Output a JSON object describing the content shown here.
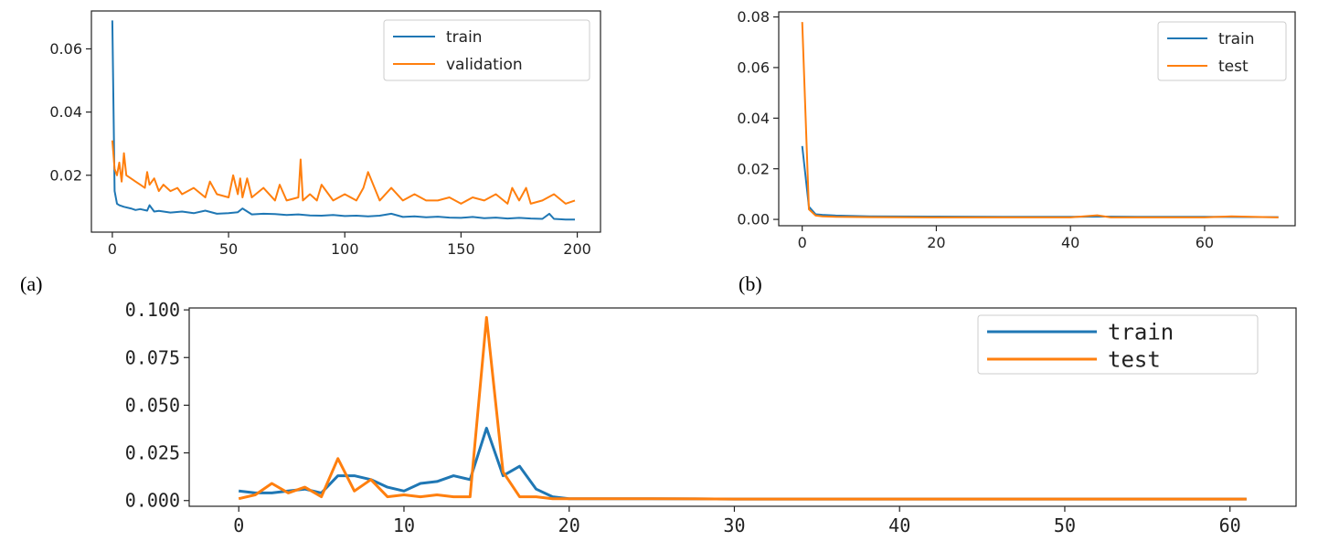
{
  "colors": {
    "train": "#1f77b4",
    "orange": "#ff7f0e",
    "axis": "#222222"
  },
  "chart_data": [
    {
      "panel": "a",
      "caption": "(a)",
      "type": "line",
      "xlim": [
        -9,
        210
      ],
      "ylim": [
        0.002,
        0.072
      ],
      "xticks": [
        0,
        50,
        100,
        150,
        200
      ],
      "yticks": [
        0.02,
        0.04,
        0.06
      ],
      "xticklabels": [
        "0",
        "50",
        "100",
        "150",
        "200"
      ],
      "yticklabels": [
        "0.02",
        "0.04",
        "0.06"
      ],
      "legend_position": "top-right",
      "series": [
        {
          "name": "train",
          "color": "#1f77b4",
          "x": [
            0,
            1,
            2,
            3,
            5,
            8,
            10,
            12,
            15,
            16,
            18,
            20,
            25,
            30,
            35,
            40,
            45,
            50,
            54,
            56,
            60,
            65,
            70,
            75,
            80,
            85,
            90,
            95,
            100,
            105,
            110,
            115,
            120,
            125,
            130,
            135,
            140,
            145,
            150,
            155,
            160,
            165,
            170,
            175,
            180,
            185,
            188,
            190,
            195,
            199
          ],
          "y": [
            0.069,
            0.015,
            0.011,
            0.0105,
            0.01,
            0.0095,
            0.009,
            0.0093,
            0.0088,
            0.0105,
            0.0085,
            0.0087,
            0.0082,
            0.0085,
            0.008,
            0.0088,
            0.0078,
            0.008,
            0.0083,
            0.0095,
            0.0076,
            0.0078,
            0.0077,
            0.0074,
            0.0076,
            0.0073,
            0.0072,
            0.0074,
            0.0071,
            0.0072,
            0.007,
            0.0072,
            0.0078,
            0.0068,
            0.007,
            0.0067,
            0.0069,
            0.0066,
            0.0065,
            0.0068,
            0.0064,
            0.0066,
            0.0063,
            0.0065,
            0.0063,
            0.0062,
            0.0078,
            0.0062,
            0.006,
            0.006
          ]
        },
        {
          "name": "validation",
          "color": "#ff7f0e",
          "x": [
            0,
            1,
            2,
            3,
            4,
            5,
            6,
            8,
            10,
            12,
            14,
            15,
            16,
            18,
            20,
            22,
            25,
            28,
            30,
            35,
            40,
            42,
            45,
            50,
            52,
            54,
            55,
            56,
            58,
            60,
            65,
            70,
            72,
            75,
            80,
            81,
            82,
            85,
            88,
            90,
            95,
            100,
            105,
            108,
            110,
            115,
            120,
            125,
            130,
            135,
            140,
            145,
            150,
            155,
            160,
            165,
            170,
            172,
            175,
            178,
            180,
            185,
            190,
            195,
            199
          ],
          "y": [
            0.031,
            0.022,
            0.02,
            0.024,
            0.018,
            0.027,
            0.02,
            0.019,
            0.018,
            0.017,
            0.016,
            0.021,
            0.017,
            0.019,
            0.015,
            0.017,
            0.015,
            0.016,
            0.014,
            0.016,
            0.013,
            0.018,
            0.014,
            0.013,
            0.02,
            0.014,
            0.019,
            0.013,
            0.019,
            0.013,
            0.016,
            0.012,
            0.017,
            0.012,
            0.013,
            0.025,
            0.012,
            0.014,
            0.012,
            0.017,
            0.012,
            0.014,
            0.012,
            0.016,
            0.021,
            0.012,
            0.016,
            0.012,
            0.014,
            0.012,
            0.012,
            0.013,
            0.011,
            0.013,
            0.012,
            0.014,
            0.011,
            0.016,
            0.012,
            0.016,
            0.011,
            0.012,
            0.014,
            0.011,
            0.012
          ]
        }
      ]
    },
    {
      "panel": "b",
      "caption": "(b)",
      "type": "line",
      "xlim": [
        -3.5,
        73.5
      ],
      "ylim": [
        -0.0025,
        0.082
      ],
      "xticks": [
        0,
        20,
        40,
        60
      ],
      "yticks": [
        0.0,
        0.02,
        0.04,
        0.06,
        0.08
      ],
      "xticklabels": [
        "0",
        "20",
        "40",
        "60"
      ],
      "yticklabels": [
        "0.00",
        "0.02",
        "0.04",
        "0.06",
        "0.08"
      ],
      "legend_position": "top-right",
      "series": [
        {
          "name": "train",
          "color": "#1f77b4",
          "x": [
            0,
            1,
            2,
            3,
            5,
            10,
            20,
            30,
            40,
            45,
            50,
            60,
            71
          ],
          "y": [
            0.029,
            0.005,
            0.002,
            0.0018,
            0.0015,
            0.0012,
            0.0011,
            0.001,
            0.001,
            0.0011,
            0.001,
            0.001,
            0.0009
          ]
        },
        {
          "name": "test",
          "color": "#ff7f0e",
          "x": [
            0,
            1,
            2,
            3,
            5,
            10,
            20,
            30,
            40,
            44,
            46,
            50,
            60,
            64,
            71
          ],
          "y": [
            0.078,
            0.004,
            0.0015,
            0.0012,
            0.001,
            0.0009,
            0.0008,
            0.0008,
            0.0008,
            0.0016,
            0.0008,
            0.0008,
            0.0008,
            0.0012,
            0.0008
          ]
        }
      ]
    },
    {
      "panel": "c",
      "caption": "",
      "type": "line",
      "xlim": [
        -3,
        64
      ],
      "ylim": [
        -0.003,
        0.101
      ],
      "xticks": [
        0,
        10,
        20,
        30,
        40,
        50,
        60
      ],
      "yticks": [
        0.0,
        0.025,
        0.05,
        0.075,
        0.1
      ],
      "xticklabels": [
        "0",
        "10",
        "20",
        "30",
        "40",
        "50",
        "60"
      ],
      "yticklabels": [
        "0.000",
        "0.025",
        "0.050",
        "0.075",
        "0.100"
      ],
      "legend_position": "top-right",
      "series": [
        {
          "name": "train",
          "color": "#1f77b4",
          "x": [
            0,
            1,
            2,
            3,
            4,
            5,
            6,
            7,
            8,
            9,
            10,
            11,
            12,
            13,
            14,
            15,
            16,
            17,
            18,
            19,
            20,
            25,
            30,
            40,
            50,
            61
          ],
          "y": [
            0.005,
            0.004,
            0.004,
            0.005,
            0.006,
            0.004,
            0.013,
            0.013,
            0.011,
            0.007,
            0.005,
            0.009,
            0.01,
            0.013,
            0.011,
            0.038,
            0.013,
            0.018,
            0.006,
            0.002,
            0.001,
            0.001,
            0.0008,
            0.0008,
            0.0008,
            0.0008
          ]
        },
        {
          "name": "test",
          "color": "#ff7f0e",
          "x": [
            0,
            1,
            2,
            3,
            4,
            5,
            6,
            7,
            8,
            9,
            10,
            11,
            12,
            13,
            14,
            15,
            16,
            17,
            18,
            19,
            20,
            25,
            30,
            40,
            50,
            61
          ],
          "y": [
            0.001,
            0.003,
            0.009,
            0.004,
            0.007,
            0.002,
            0.022,
            0.005,
            0.011,
            0.002,
            0.003,
            0.002,
            0.003,
            0.002,
            0.002,
            0.096,
            0.015,
            0.002,
            0.002,
            0.001,
            0.001,
            0.001,
            0.0008,
            0.0008,
            0.0008,
            0.0008
          ]
        }
      ]
    }
  ]
}
